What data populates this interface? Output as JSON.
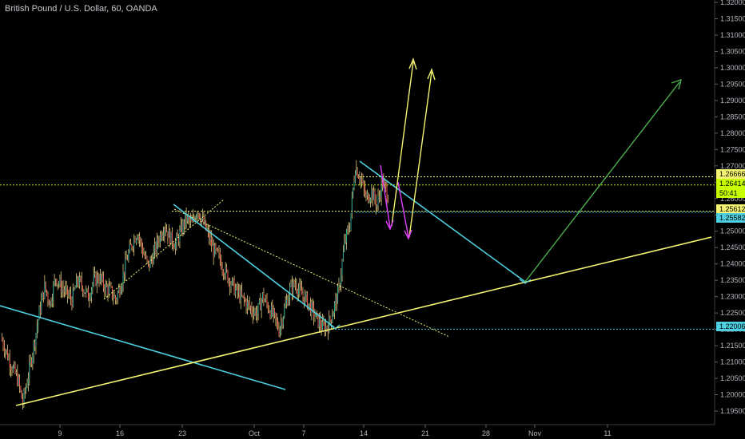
{
  "chart_data": {
    "type": "candlestick",
    "title": "British Pound / U.S. Dollar, 60, OANDA",
    "x_tick_labels": [
      "9",
      "16",
      "23",
      "Oct",
      "7",
      "14",
      "21",
      "28",
      "Nov",
      "11"
    ],
    "y_ticks": [
      "1.32000",
      "1.31500",
      "1.31000",
      "1.30500",
      "1.30000",
      "1.29500",
      "1.29000",
      "1.28500",
      "1.28000",
      "1.27500",
      "1.27000",
      "1.26500",
      "1.26000",
      "1.25500",
      "1.25000",
      "1.24500",
      "1.24000",
      "1.23500",
      "1.23000",
      "1.22500",
      "1.22000",
      "1.21500",
      "1.21000",
      "1.20500",
      "1.20000",
      "1.19500"
    ],
    "ylim": [
      1.19,
      1.32
    ],
    "grid": false,
    "colors": {
      "up": "#26a69a",
      "down": "#ef5350",
      "wick": "#e0c87a",
      "trendline_cyan": "#4dd0e1",
      "trendline_yellow": "#f4f470",
      "projection_green": "#4caf50",
      "projection_magenta": "#e040fb"
    },
    "price_labels": [
      {
        "name": "level-1-26666",
        "value": "1.26666",
        "color": "#f4f470"
      },
      {
        "name": "level-1-26414",
        "value": "1.26414",
        "color": "#c6ff00"
      },
      {
        "name": "current-price",
        "value": "50:41",
        "color": "#c6ff00"
      },
      {
        "name": "level-1-25612",
        "value": "1.25612",
        "color": "#f4f470"
      },
      {
        "name": "level-1-25582",
        "value": "1.25582",
        "color": "#4dd0e1"
      },
      {
        "name": "level-1-22006",
        "value": "1.22006",
        "color": "#4dd0e1"
      }
    ],
    "horizontal_levels": [
      1.26666,
      1.26414,
      1.25612,
      1.25582,
      1.22006
    ],
    "price_path": [
      1.2175,
      1.213,
      1.2085,
      1.205,
      1.1975,
      1.206,
      1.215,
      1.225,
      1.233,
      1.228,
      1.236,
      1.233,
      1.231,
      1.229,
      1.235,
      1.233,
      1.23,
      1.235,
      1.236,
      1.233,
      1.232,
      1.229,
      1.234,
      1.241,
      1.246,
      1.25,
      1.244,
      1.239,
      1.243,
      1.248,
      1.252,
      1.248,
      1.246,
      1.25,
      1.254,
      1.252,
      1.257,
      1.253,
      1.249,
      1.244,
      1.242,
      1.238,
      1.235,
      1.232,
      1.23,
      1.228,
      1.226,
      1.225,
      1.23,
      1.227,
      1.224,
      1.22,
      1.226,
      1.232,
      1.234,
      1.231,
      1.229,
      1.226,
      1.223,
      1.2205,
      1.221,
      1.226,
      1.232,
      1.246,
      1.252,
      1.27,
      1.266,
      1.26,
      1.262,
      1.258,
      1.265,
      1.261
    ]
  }
}
